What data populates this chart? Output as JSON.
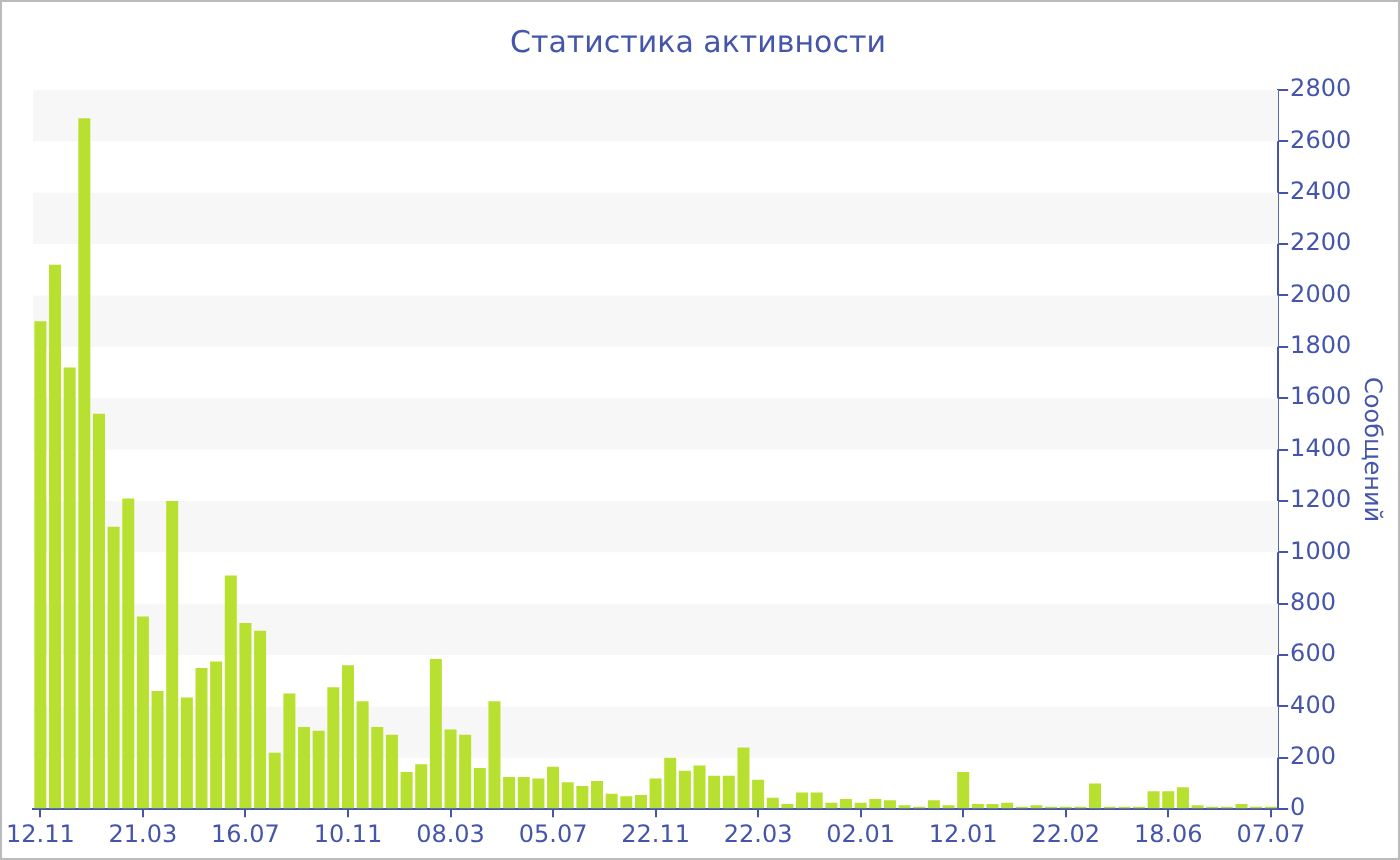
{
  "chart_data": {
    "type": "bar",
    "title": "Статистика активности",
    "ylabel": "Сообщений",
    "categories": [
      "12.11",
      null,
      null,
      null,
      null,
      null,
      null,
      "21.03",
      null,
      null,
      null,
      null,
      null,
      null,
      "16.07",
      null,
      null,
      null,
      null,
      null,
      null,
      "10.11",
      null,
      null,
      null,
      null,
      null,
      null,
      "08.03",
      null,
      null,
      null,
      null,
      null,
      null,
      "05.07",
      null,
      null,
      null,
      null,
      null,
      null,
      "22.11",
      null,
      null,
      null,
      null,
      null,
      null,
      "22.03",
      null,
      null,
      null,
      null,
      null,
      null,
      "02.01",
      null,
      null,
      null,
      null,
      null,
      null,
      "12.01",
      null,
      null,
      null,
      null,
      null,
      null,
      "22.02",
      null,
      null,
      null,
      null,
      null,
      null,
      "18.06",
      null,
      null,
      null,
      null,
      null,
      null,
      "07.07"
    ],
    "values": [
      1900,
      2120,
      1720,
      2690,
      1540,
      1100,
      1210,
      750,
      460,
      1200,
      435,
      550,
      575,
      910,
      725,
      695,
      220,
      450,
      320,
      305,
      475,
      560,
      420,
      320,
      290,
      145,
      175,
      585,
      310,
      290,
      160,
      420,
      125,
      125,
      120,
      165,
      105,
      90,
      110,
      60,
      50,
      55,
      120,
      200,
      150,
      170,
      130,
      130,
      240,
      115,
      45,
      20,
      65,
      65,
      25,
      40,
      25,
      40,
      35,
      15,
      10,
      35,
      15,
      145,
      20,
      20,
      25,
      10,
      15,
      10,
      10,
      10,
      100,
      10,
      10,
      10,
      70,
      70,
      85,
      15,
      10,
      10,
      20,
      10,
      10
    ],
    "color": "#b8e030",
    "ylim": [
      0,
      2800
    ],
    "yticks": [
      0,
      200,
      400,
      600,
      800,
      1000,
      1200,
      1400,
      1600,
      1800,
      2000,
      2200,
      2400,
      2600,
      2800
    ],
    "bands": [
      {
        "axis": "y",
        "from": 200,
        "to": 400,
        "color": "#f7f7f7"
      },
      {
        "axis": "y",
        "from": 600,
        "to": 800,
        "color": "#f7f7f7"
      },
      {
        "axis": "y",
        "from": 1000,
        "to": 1200,
        "color": "#f7f7f7"
      },
      {
        "axis": "y",
        "from": 1400,
        "to": 1600,
        "color": "#f7f7f7"
      },
      {
        "axis": "y",
        "from": 1800,
        "to": 2000,
        "color": "#f7f7f7"
      },
      {
        "axis": "y",
        "from": 2200,
        "to": 2400,
        "color": "#f7f7f7"
      },
      {
        "axis": "y",
        "from": 2600,
        "to": 2800,
        "color": "#f7f7f7"
      }
    ]
  }
}
